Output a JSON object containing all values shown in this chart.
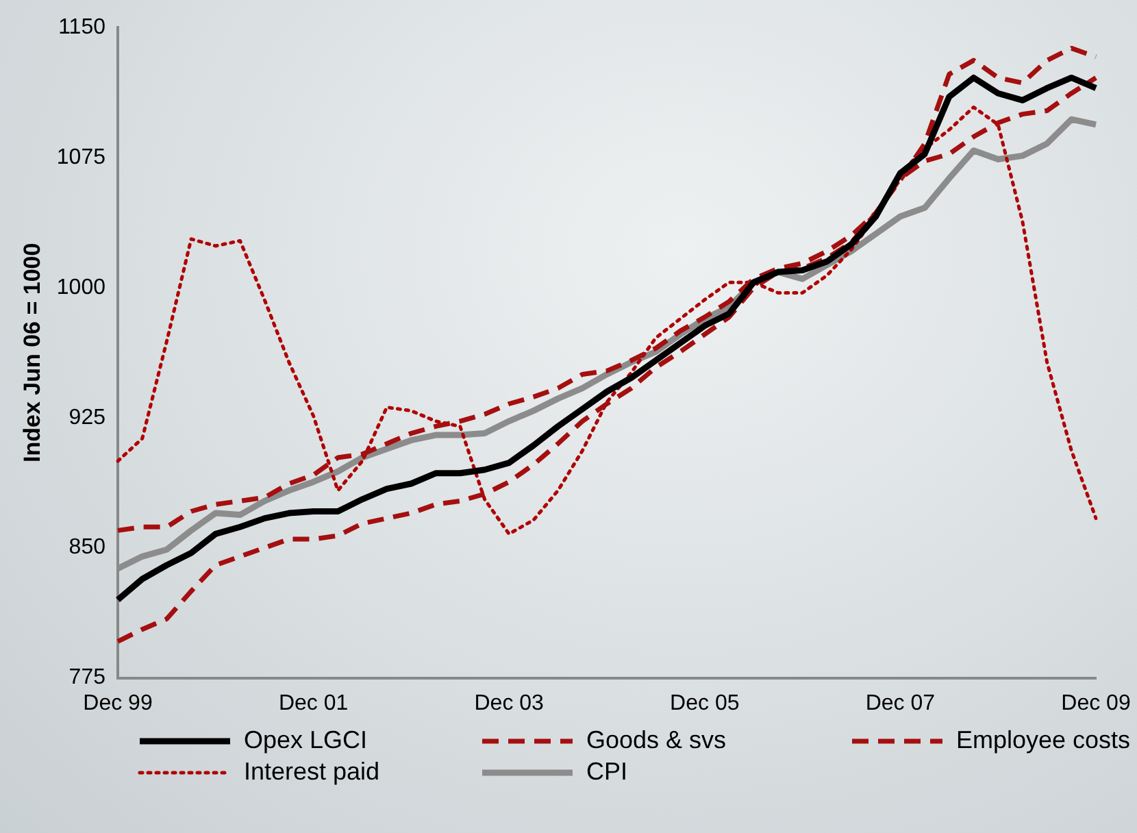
{
  "chart_data": {
    "type": "line",
    "ylabel": "Index Jun 06 = 1000",
    "categories": [
      "Dec 99",
      null,
      null,
      null,
      null,
      null,
      null,
      null,
      "Dec 01",
      null,
      null,
      null,
      null,
      null,
      null,
      null,
      "Dec 03",
      null,
      null,
      null,
      null,
      null,
      null,
      null,
      "Dec 05",
      null,
      null,
      null,
      null,
      null,
      null,
      null,
      "Dec 07",
      null,
      null,
      null,
      null,
      null,
      null,
      null,
      "Dec 09"
    ],
    "ylim": [
      775,
      1150
    ],
    "yticks": [
      775,
      850,
      925,
      1000,
      1075,
      1150
    ],
    "grid": false,
    "legend": "bottom",
    "marker": "none",
    "series": [
      {
        "name": "Opex LGCI",
        "color": "#000000",
        "line_style": "solid",
        "values": [
          820,
          832,
          840,
          847,
          858,
          862,
          867,
          870,
          871,
          871,
          878,
          884,
          887,
          893,
          893,
          895,
          899,
          909,
          920,
          930,
          940,
          948,
          958,
          968,
          978,
          985,
          1003,
          1009,
          1010,
          1015,
          1025,
          1041,
          1066,
          1077,
          1110,
          1121,
          1112,
          1108,
          1115,
          1121,
          1115
        ]
      },
      {
        "name": "Goods & svs",
        "color": "#a50f0f",
        "line_style": "dashed",
        "values": [
          796,
          803,
          809,
          825,
          840,
          845,
          850,
          855,
          855,
          857,
          864,
          867,
          870,
          875,
          877,
          881,
          888,
          898,
          910,
          923,
          933,
          942,
          954,
          963,
          973,
          983,
          1000,
          1009,
          1011,
          1017,
          1026,
          1043,
          1062,
          1083,
          1123,
          1131,
          1121,
          1118,
          1131,
          1138,
          1133
        ]
      },
      {
        "name": "Employee costs",
        "color": "#a50f0f",
        "line_style": "dashed",
        "values": [
          860,
          862,
          862,
          871,
          875,
          877,
          879,
          887,
          892,
          902,
          904,
          910,
          916,
          920,
          923,
          927,
          933,
          937,
          942,
          950,
          952,
          958,
          965,
          975,
          983,
          992,
          1005,
          1011,
          1014,
          1021,
          1030,
          1043,
          1063,
          1073,
          1077,
          1087,
          1095,
          1100,
          1102,
          1112,
          1121
        ]
      },
      {
        "name": "Interest paid",
        "color": "#b00000",
        "line_style": "dotted",
        "values": [
          900,
          913,
          969,
          1028,
          1024,
          1027,
          993,
          957,
          926,
          883,
          900,
          931,
          929,
          923,
          920,
          878,
          858,
          866,
          883,
          906,
          934,
          951,
          971,
          982,
          993,
          1003,
          1003,
          997,
          997,
          1007,
          1022,
          1041,
          1066,
          1080,
          1091,
          1104,
          1094,
          1038,
          957,
          906,
          867
        ]
      },
      {
        "name": "CPI",
        "color": "#8c8c8c",
        "line_style": "solid",
        "values": [
          838,
          845,
          849,
          860,
          870,
          869,
          877,
          883,
          888,
          894,
          902,
          907,
          912,
          915,
          915,
          916,
          923,
          929,
          936,
          942,
          950,
          957,
          963,
          973,
          982,
          989,
          1003,
          1009,
          1005,
          1013,
          1021,
          1031,
          1041,
          1046,
          1063,
          1079,
          1074,
          1076,
          1083,
          1097,
          1094
        ]
      }
    ]
  }
}
